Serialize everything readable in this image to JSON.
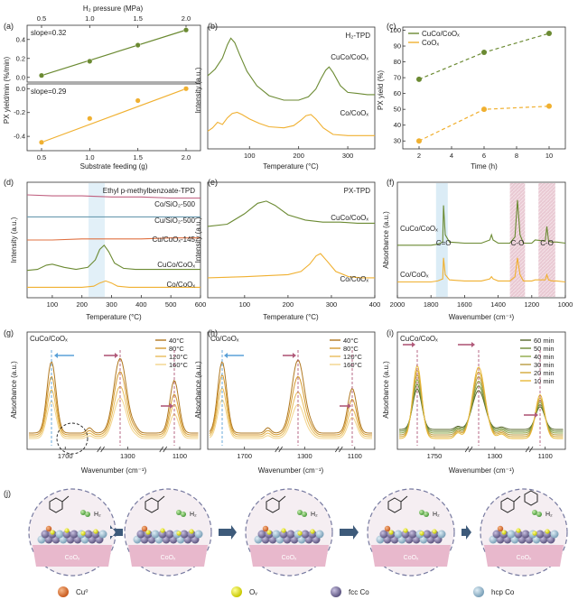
{
  "colors": {
    "green": "#6b8a32",
    "orange": "#f0b030",
    "cucuo": "#e07040",
    "cusio": "#c06080",
    "cusio2": "#6a9ab0",
    "pink": "#b05a7a",
    "blue": "#5aa0d8",
    "axis": "#333333",
    "box": "#cccccc"
  },
  "chart_data": [
    {
      "id": "a",
      "panel_label": "(a)",
      "type": "scatter",
      "top_axis_title": "H₂ pressure (MPa)",
      "top_ticks": [
        "0.5",
        "1.0",
        "1.5",
        "2.0"
      ],
      "xlabel": "Substrate feeding (g)",
      "ylabel": "PX yield/min (%/min)",
      "xlim": [
        0.35,
        2.15
      ],
      "x_ticks": [
        "0.5",
        "1.0",
        "1.5",
        "2.0"
      ],
      "series": [
        {
          "name": "H2 pressure",
          "annotation": "slope=0.32",
          "x": [
            0.5,
            1.0,
            1.5,
            2.0
          ],
          "y": [
            0.02,
            0.17,
            0.34,
            0.5
          ],
          "ylim": [
            -0.05,
            0.55
          ],
          "y_ticks": [
            "0.0",
            "0.2",
            "0.4"
          ]
        },
        {
          "name": "Substrate feeding",
          "annotation": "slope=0.29",
          "x": [
            0.5,
            1.0,
            1.5,
            2.0
          ],
          "y": [
            -0.45,
            -0.25,
            -0.1,
            0.0
          ],
          "ylim": [
            -0.52,
            0.04
          ],
          "y_ticks": [
            "-0.4",
            "-0.2",
            "0.0"
          ]
        }
      ]
    },
    {
      "id": "b",
      "panel_label": "(b)",
      "type": "line",
      "title": "H₂-TPD",
      "xlabel": "Temperature (°C)",
      "ylabel": "Intensity (a.u.)",
      "xlim": [
        15,
        355
      ],
      "x_ticks": [
        "100",
        "200",
        "300"
      ],
      "series": [
        {
          "name": "CuCo/CoOₓ",
          "x": [
            15,
            30,
            45,
            55,
            62,
            70,
            80,
            95,
            115,
            140,
            170,
            200,
            220,
            235,
            245,
            255,
            262,
            270,
            285,
            300,
            320,
            340,
            355
          ],
          "y": [
            66,
            72,
            82,
            94,
            100,
            96,
            85,
            70,
            57,
            48,
            44,
            44,
            47,
            54,
            63,
            71,
            74,
            69,
            57,
            51,
            50,
            49,
            49
          ]
        },
        {
          "name": "Co/CoOₓ",
          "x": [
            15,
            25,
            35,
            45,
            55,
            65,
            75,
            85,
            100,
            120,
            140,
            170,
            190,
            205,
            215,
            225,
            235,
            250,
            270,
            300,
            330,
            355
          ],
          "y": [
            16,
            19,
            24,
            22,
            28,
            32,
            33,
            31,
            27,
            23,
            20,
            19,
            21,
            26,
            30,
            31,
            27,
            19,
            13,
            12,
            12,
            12
          ]
        }
      ]
    },
    {
      "id": "c",
      "panel_label": "(c)",
      "type": "line",
      "xlabel": "Time (h)",
      "ylabel": "PX yield (%)",
      "xlim": [
        1,
        11
      ],
      "ylim": [
        25,
        102
      ],
      "x_ticks": [
        "2",
        "4",
        "6",
        "8",
        "10"
      ],
      "y_ticks": [
        "30",
        "40",
        "50",
        "60",
        "70",
        "80",
        "90",
        "100"
      ],
      "series": [
        {
          "name": "CuCo/CoOₓ",
          "x": [
            2,
            6,
            10
          ],
          "y": [
            69,
            86,
            98
          ]
        },
        {
          "name": "CoOₓ",
          "x": [
            2,
            6,
            10
          ],
          "y": [
            30,
            50,
            52
          ]
        }
      ]
    },
    {
      "id": "d",
      "panel_label": "(d)",
      "type": "line",
      "title": "Ethyl p-methylbenzoate-TPD",
      "xlabel": "Temperature (°C)",
      "ylabel": "Intensity (a.u.)",
      "xlim": [
        15,
        600
      ],
      "x_ticks": [
        "100",
        "200",
        "300",
        "400",
        "500",
        "600"
      ],
      "series": [
        {
          "name": "Co/SiO₂-500",
          "x": [
            15,
            100,
            200,
            300,
            400,
            500,
            600
          ],
          "y": [
            98,
            97,
            97,
            96,
            96,
            95,
            95
          ]
        },
        {
          "name": "Cu/SiO₂-500",
          "x": [
            15,
            100,
            200,
            300,
            400,
            500,
            600
          ],
          "y": [
            77,
            77,
            77,
            77,
            77,
            77,
            77
          ]
        },
        {
          "name": "Cu/CuOₓ-145",
          "x": [
            15,
            100,
            200,
            300,
            400,
            500,
            600
          ],
          "y": [
            55,
            55,
            56,
            56,
            56,
            57,
            57
          ]
        },
        {
          "name": "CuCo/CoOₓ",
          "x": [
            15,
            50,
            80,
            100,
            140,
            180,
            220,
            245,
            260,
            275,
            290,
            310,
            340,
            380,
            450,
            520,
            600
          ],
          "y": [
            26,
            27,
            31,
            32,
            29,
            27,
            29,
            36,
            46,
            50,
            44,
            33,
            28,
            27,
            27,
            27,
            27
          ]
        },
        {
          "name": "Co/CoOₓ",
          "x": [
            15,
            100,
            200,
            240,
            260,
            280,
            300,
            320,
            360,
            450,
            600
          ],
          "y": [
            10,
            10,
            10,
            11,
            14,
            16,
            14,
            11,
            10,
            10,
            10
          ]
        }
      ]
    },
    {
      "id": "e",
      "panel_label": "(e)",
      "type": "line",
      "title": "PX-TPD",
      "xlabel": "Temperature (°C)",
      "ylabel": "Intensity (a.u.)",
      "xlim": [
        15,
        400
      ],
      "x_ticks": [
        "100",
        "200",
        "300",
        "400"
      ],
      "series": [
        {
          "name": "CuCo/CoOₓ",
          "x": [
            15,
            60,
            100,
            130,
            150,
            170,
            200,
            240,
            280,
            320,
            360,
            400
          ],
          "y": [
            68,
            70,
            80,
            90,
            92,
            88,
            79,
            74,
            72,
            72,
            71,
            71
          ]
        },
        {
          "name": "Co/CoOₓ",
          "x": [
            15,
            100,
            200,
            230,
            250,
            265,
            275,
            290,
            310,
            340,
            370,
            400
          ],
          "y": [
            19,
            20,
            22,
            25,
            32,
            40,
            42,
            35,
            25,
            20,
            19,
            19
          ]
        }
      ]
    },
    {
      "id": "f",
      "panel_label": "(f)",
      "type": "line",
      "xlabel": "Wavenumber (cm⁻¹)",
      "ylabel": "Absorbance (a.u.)",
      "xlim": [
        2000,
        1000
      ],
      "x_ticks": [
        "2000",
        "1800",
        "1600",
        "1400",
        "1200",
        "1000"
      ],
      "peak_labels": [
        "C=O",
        "C-O",
        "C-O"
      ],
      "series": [
        {
          "name": "CuCo/CoOₓ",
          "x": [
            2000,
            1800,
            1760,
            1730,
            1725,
            1715,
            1690,
            1600,
            1500,
            1450,
            1440,
            1430,
            1400,
            1330,
            1300,
            1285,
            1270,
            1250,
            1200,
            1180,
            1120,
            1110,
            1100,
            1080,
            1050,
            1000
          ],
          "y": [
            50,
            50,
            51,
            53,
            88,
            60,
            53,
            52,
            52,
            55,
            60,
            55,
            52,
            52,
            58,
            93,
            60,
            52,
            52,
            55,
            54,
            68,
            54,
            53,
            53,
            52
          ]
        },
        {
          "name": "Co/CoOₓ",
          "x": [
            2000,
            1800,
            1760,
            1730,
            1725,
            1715,
            1690,
            1600,
            1500,
            1450,
            1440,
            1430,
            1400,
            1330,
            1300,
            1285,
            1270,
            1250,
            1200,
            1180,
            1120,
            1110,
            1100,
            1080,
            1050,
            1000
          ],
          "y": [
            15,
            15,
            16,
            18,
            38,
            22,
            17,
            16,
            16,
            18,
            20,
            18,
            16,
            16,
            20,
            38,
            22,
            16,
            16,
            17,
            17,
            22,
            17,
            16,
            16,
            15
          ]
        }
      ]
    },
    {
      "id": "g",
      "panel_label": "(g)",
      "type": "line",
      "label": "CuCo/CoOₓ",
      "xlabel": "Wavenumber (cm⁻¹)",
      "ylabel": "Absorbance (a.u.)",
      "x_ticks": [
        "1700",
        "1300",
        "1100"
      ],
      "series": [
        {
          "name": "40°C",
          "peaks": [
            88,
            92,
            65
          ]
        },
        {
          "name": "80°C",
          "peaks": [
            72,
            78,
            50
          ]
        },
        {
          "name": "120°C",
          "peaks": [
            58,
            62,
            40
          ]
        },
        {
          "name": "160°C",
          "peaks": [
            46,
            50,
            30
          ]
        }
      ]
    },
    {
      "id": "h",
      "panel_label": "(h)",
      "type": "line",
      "label": "Co/CoOₓ",
      "xlabel": "Wavenumber (cm⁻¹)",
      "ylabel": "Absorbance (a.u.)",
      "x_ticks": [
        "1700",
        "1300",
        "1100"
      ],
      "series": [
        {
          "name": "40°C",
          "peaks": [
            88,
            90,
            55
          ]
        },
        {
          "name": "80°C",
          "peaks": [
            74,
            72,
            44
          ]
        },
        {
          "name": "120°C",
          "peaks": [
            60,
            55,
            34
          ]
        },
        {
          "name": "160°C",
          "peaks": [
            48,
            42,
            26
          ]
        }
      ]
    },
    {
      "id": "i",
      "panel_label": "(i)",
      "type": "line",
      "label": "CuCo/CoOₓ",
      "xlabel": "Wavenumber (cm⁻¹)",
      "ylabel": "Absorbance (a.u.)",
      "x_ticks": [
        "1750",
        "1300",
        "1100"
      ],
      "series": [
        {
          "name": "60 min",
          "peaks": [
            50,
            48,
            28
          ]
        },
        {
          "name": "50 min",
          "peaks": [
            58,
            56,
            33
          ]
        },
        {
          "name": "40 min",
          "peaks": [
            66,
            64,
            38
          ]
        },
        {
          "name": "30 min",
          "peaks": [
            74,
            72,
            43
          ]
        },
        {
          "name": "20 min",
          "peaks": [
            82,
            80,
            48
          ]
        },
        {
          "name": "10 min",
          "peaks": [
            90,
            88,
            54
          ]
        }
      ]
    }
  ],
  "scheme": {
    "panel_label": "(j)",
    "steps": [
      {
        "surface_label": "CoOₓ",
        "h2_label": "H₂"
      },
      {
        "surface_label": "CoOₓ",
        "h2_label": "H₂"
      },
      {
        "surface_label": "CoOₓ",
        "h2_label": "H₂"
      },
      {
        "surface_label": "CoOₓ",
        "h2_label": "H₂"
      },
      {
        "surface_label": "CoOₓ",
        "h2_label": "H₂"
      }
    ],
    "legend": [
      "Cu⁰",
      "Oᵥ",
      "fcc Co",
      "hcp Co"
    ]
  }
}
